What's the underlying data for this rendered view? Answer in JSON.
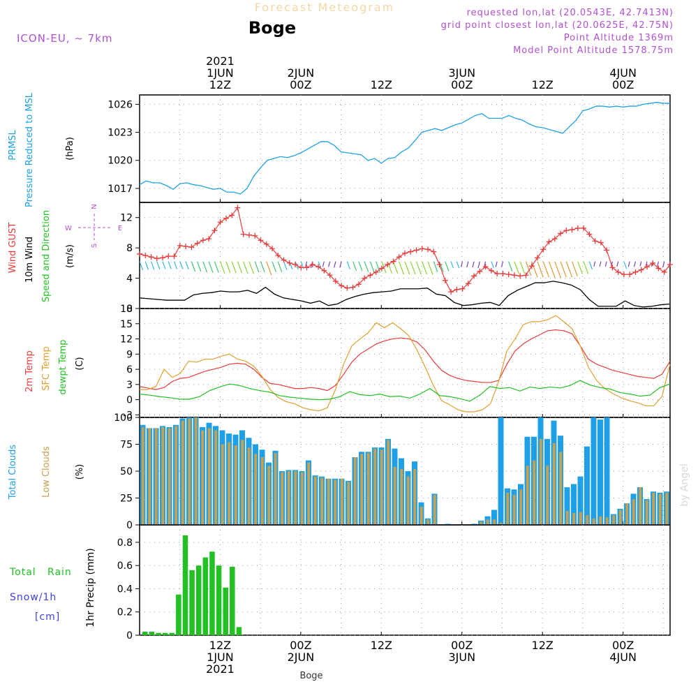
{
  "header": {
    "title": "Forecast Meteogram",
    "location": "Boge",
    "model": "ICON-EU, ~ 7km",
    "requested": "requested lon,lat (20.0543E, 42.7413N)",
    "grid_point": "grid point closest lon,lat (20.0625E, 42.75N)",
    "point_altitude": "Point Altitude 1369m",
    "model_altitude": "Model Point Altitude 1578.75m",
    "footer_location": "Boge",
    "watermark": "by Angel"
  },
  "time_axis": {
    "start_hour": 0,
    "end_hour": 79,
    "top_ticks": [
      {
        "hour": 12,
        "lines": [
          "2021",
          "1JUN",
          "12Z"
        ]
      },
      {
        "hour": 24,
        "lines": [
          "2JUN",
          "00Z"
        ]
      },
      {
        "hour": 36,
        "lines": [
          "12Z"
        ]
      },
      {
        "hour": 48,
        "lines": [
          "3JUN",
          "00Z"
        ]
      },
      {
        "hour": 60,
        "lines": [
          "12Z"
        ]
      },
      {
        "hour": 72,
        "lines": [
          "4JUN",
          "00Z"
        ]
      }
    ],
    "bottom_ticks": [
      {
        "hour": 12,
        "lines": [
          "12Z",
          "1JUN",
          "2021"
        ]
      },
      {
        "hour": 24,
        "lines": [
          "00Z",
          "2JUN"
        ]
      },
      {
        "hour": 36,
        "lines": [
          "12Z"
        ]
      },
      {
        "hour": 48,
        "lines": [
          "00Z",
          "3JUN"
        ]
      },
      {
        "hour": 60,
        "lines": [
          "12Z"
        ]
      },
      {
        "hour": 72,
        "lines": [
          "00Z",
          "4JUN"
        ]
      }
    ]
  },
  "colors": {
    "pressure": "#1ea0e6",
    "gust": "#e83c3c",
    "wind": "#000000",
    "t2m": "#e83c3c",
    "sfc": "#e0a030",
    "dew": "#22c022",
    "total_clouds": "#1ea0e6",
    "low_clouds": "#c8a050",
    "rain": "#22c022",
    "snow": "#4040e0",
    "title": "#f0d8a8",
    "meta": "#b050d0",
    "watermark": "#d8d8d8"
  },
  "panel_labels": {
    "pressure": {
      "lines": [
        "PRMSL",
        "Pressure Reduced to MSL"
      ],
      "unit": "(hPa)"
    },
    "wind": {
      "lines": [
        "Wind GUST",
        "10m Wind",
        "Speed and Direction"
      ],
      "unit": "(m/s)",
      "compass": {
        "n": "N",
        "s": "S",
        "w": "W",
        "e": "E"
      }
    },
    "temp": {
      "lines": [
        "2m Temp",
        "SFC Temp",
        "dewpt Temp"
      ],
      "unit": "(C)"
    },
    "clouds": {
      "lines": [
        "Total Clouds",
        "Low Clouds"
      ],
      "unit": "(%)"
    },
    "precip": {
      "lines": [
        "Total   Rain",
        "Snow/1h",
        "[cm]"
      ],
      "unit": "1hr Precip (mm)"
    }
  },
  "chart_data": [
    {
      "type": "line",
      "panel": "pressure",
      "ylim": [
        1015.5,
        1027
      ],
      "yticks": [
        1017,
        1020,
        1023,
        1026
      ],
      "grid": true,
      "x": [
        0,
        1,
        2,
        3,
        4,
        5,
        6,
        7,
        8,
        9,
        10,
        11,
        12,
        13,
        14,
        15,
        16,
        17,
        18,
        19,
        20,
        21,
        22,
        23,
        24,
        25,
        26,
        27,
        28,
        29,
        30,
        31,
        32,
        33,
        34,
        35,
        36,
        37,
        38,
        39,
        40,
        41,
        42,
        43,
        44,
        45,
        46,
        47,
        48,
        49,
        50,
        51,
        52,
        53,
        54,
        55,
        56,
        57,
        58,
        59,
        60,
        61,
        62,
        63,
        64,
        65,
        66,
        67,
        68,
        69,
        70,
        71,
        72,
        73,
        74,
        75,
        76,
        77,
        78,
        79
      ],
      "series": [
        {
          "name": "PRMSL",
          "values": [
            1017.4,
            1017.8,
            1017.6,
            1017.6,
            1017.3,
            1016.9,
            1017.5,
            1017.6,
            1017.4,
            1017.3,
            1017.1,
            1016.9,
            1017.0,
            1016.6,
            1016.6,
            1016.4,
            1017.0,
            1018.3,
            1019.2,
            1020.0,
            1020.2,
            1020.4,
            1020.3,
            1020.5,
            1020.8,
            1021.2,
            1021.6,
            1022.0,
            1022.0,
            1021.6,
            1020.9,
            1020.8,
            1020.7,
            1020.6,
            1020.0,
            1020.2,
            1019.7,
            1020.2,
            1020.3,
            1020.9,
            1021.3,
            1022.1,
            1023.0,
            1023.2,
            1023.4,
            1023.2,
            1023.5,
            1023.8,
            1024.0,
            1024.4,
            1024.8,
            1025.0,
            1024.5,
            1024.5,
            1024.5,
            1024.8,
            1024.5,
            1024.3,
            1023.9,
            1023.6,
            1023.5,
            1023.3,
            1023.1,
            1022.9,
            1023.6,
            1024.3,
            1025.3,
            1025.5,
            1025.8,
            1025.8,
            1025.7,
            1025.8,
            1025.7,
            1025.8,
            1025.8,
            1026.0,
            1026.1,
            1026.2,
            1026.1,
            1026.1
          ]
        }
      ]
    },
    {
      "type": "line",
      "panel": "wind",
      "ylim": [
        0,
        14
      ],
      "yticks": [
        0,
        4,
        8,
        12
      ],
      "grid": true,
      "series": [
        {
          "name": "Wind GUST",
          "values": [
            7.2,
            7.0,
            6.8,
            6.6,
            6.7,
            6.9,
            6.9,
            8.3,
            8.2,
            8.1,
            8.6,
            9.0,
            9.2,
            10.3,
            11.4,
            11.9,
            12.3,
            13.3,
            9.8,
            9.7,
            9.6,
            9.0,
            8.5,
            7.9,
            7.0,
            6.4,
            6.0,
            5.8,
            5.4,
            5.4,
            5.8,
            5.5,
            5.0,
            4.4,
            3.6,
            3.0,
            2.7,
            2.8,
            3.2,
            4.0,
            4.4,
            4.8,
            5.3,
            5.8,
            6.2,
            6.8,
            7.3,
            7.5,
            7.7,
            7.9,
            7.8,
            7.5,
            5.8,
            3.7,
            2.2,
            2.5,
            2.6,
            3.3,
            4.3,
            4.9,
            5.5,
            5.0,
            4.6,
            4.6,
            4.5,
            4.4,
            4.3,
            4.4,
            5.6,
            6.7,
            7.8,
            8.8,
            9.2,
            9.9,
            10.3,
            10.4,
            10.6,
            10.6,
            9.8,
            8.9,
            8.7,
            7.7,
            5.4,
            4.8,
            4.5,
            4.5,
            4.8,
            5.1,
            5.5,
            6.0,
            5.3,
            4.8,
            5.8
          ]
        },
        {
          "name": "10m Wind",
          "values": [
            1.4,
            1.3,
            1.2,
            1.1,
            1.1,
            1.1,
            1.8,
            2.0,
            2.1,
            2.3,
            2.2,
            2.2,
            2.4,
            2.0,
            2.8,
            1.9,
            1.4,
            1.2,
            1.0,
            0.7,
            1.0,
            0.4,
            0.6,
            1.2,
            1.6,
            1.9,
            2.1,
            2.2,
            2.3,
            2.6,
            2.6,
            2.6,
            2.7,
            1.9,
            1.7,
            0.8,
            0.4,
            0.5,
            0.7,
            0.8,
            0.4,
            1.7,
            2.4,
            2.9,
            3.4,
            3.4,
            3.6,
            3.4,
            3.1,
            2.5,
            1.2,
            0.3,
            0.3,
            0.3,
            1.0,
            0.4,
            0.2,
            0.3,
            0.5,
            0.6
          ]
        }
      ]
    },
    {
      "type": "line",
      "panel": "temp",
      "ylim": [
        -3.5,
        18
      ],
      "yticks": [
        -3,
        0,
        3,
        6,
        9,
        12,
        15,
        18
      ],
      "grid": true,
      "series": [
        {
          "name": "2m Temp",
          "values": [
            2.6,
            2.3,
            2.0,
            2.4,
            3.6,
            4.2,
            4.4,
            5.0,
            5.6,
            6.0,
            6.4,
            7.0,
            7.2,
            7.0,
            6.0,
            4.4,
            3.2,
            3.0,
            2.6,
            2.2,
            2.2,
            2.4,
            2.2,
            1.8,
            2.8,
            5.0,
            7.4,
            9.0,
            10.0,
            11.0,
            11.6,
            12.0,
            12.2,
            12.0,
            11.4,
            9.8,
            7.6,
            5.8,
            4.8,
            4.2,
            3.8,
            3.6,
            3.4,
            3.4,
            3.8,
            7.0,
            9.6,
            11.0,
            12.0,
            12.8,
            13.6,
            13.8,
            13.6,
            13.0,
            10.6,
            8.0,
            7.0,
            6.4,
            5.8,
            5.4,
            5.0,
            4.6,
            4.4,
            4.2,
            5.0,
            7.6
          ]
        },
        {
          "name": "SFC Temp",
          "values": [
            2.0,
            2.0,
            2.6,
            6.0,
            4.4,
            5.2,
            7.6,
            7.4,
            8.0,
            8.0,
            8.6,
            9.0,
            8.0,
            7.6,
            6.6,
            4.6,
            2.0,
            0.4,
            -0.4,
            -0.8,
            -1.6,
            -2.0,
            -2.2,
            -1.6,
            2.0,
            7.0,
            10.6,
            12.0,
            13.2,
            15.2,
            14.2,
            15.2,
            14.0,
            12.6,
            9.8,
            6.4,
            2.8,
            -0.2,
            -1.0,
            -2.0,
            -2.4,
            -2.4,
            -2.0,
            -0.8,
            3.6,
            9.6,
            12.0,
            14.8,
            15.4,
            15.4,
            15.8,
            16.6,
            15.4,
            14.0,
            10.6,
            6.4,
            3.8,
            2.2,
            1.2,
            0.4,
            -0.2,
            -0.6,
            -1.2,
            -1.2,
            0.6,
            7.0
          ]
        },
        {
          "name": "dewpt Temp",
          "values": [
            1.1,
            0.9,
            0.6,
            0.4,
            0.1,
            0.1,
            0.6,
            1.8,
            2.5,
            3.1,
            2.8,
            2.2,
            1.8,
            1.5,
            0.8,
            0.5,
            0.3,
            0.1,
            0.0,
            0.1,
            0.6,
            1.6,
            1.0,
            0.8,
            1.1,
            0.6,
            0.7,
            0.3,
            1.1,
            2.2,
            0.8,
            0.6,
            0.2,
            -0.3,
            0.9,
            2.6,
            2.2,
            2.4,
            1.7,
            2.5,
            2.2,
            2.5,
            2.3,
            2.8,
            3.8,
            2.9,
            2.4,
            2.1,
            1.4,
            1.1,
            0.7,
            0.9,
            2.4,
            3.1
          ]
        }
      ]
    },
    {
      "type": "bar",
      "panel": "clouds",
      "ylim": [
        0,
        100
      ],
      "yticks": [
        0,
        25,
        50,
        75,
        100
      ],
      "grid": true,
      "series": [
        {
          "name": "Total Clouds",
          "values": [
            93,
            90,
            90,
            92,
            91,
            93,
            99,
            100,
            100,
            91,
            95,
            92,
            88,
            85,
            84,
            88,
            81,
            75,
            70,
            58,
            69,
            50,
            51,
            51,
            50,
            60,
            46,
            45,
            43,
            43,
            43,
            41,
            63,
            68,
            68,
            72,
            72,
            80,
            71,
            62,
            50,
            59,
            21,
            6,
            29,
            0,
            1,
            0,
            0,
            0,
            1,
            4,
            8,
            14,
            100,
            34,
            33,
            38,
            82,
            82,
            100,
            80,
            97,
            83,
            35,
            38,
            45,
            73,
            100,
            98,
            100,
            10,
            15,
            20,
            29,
            35,
            24,
            31,
            30,
            31
          ]
        },
        {
          "name": "Low Clouds",
          "values": [
            91,
            90,
            90,
            91,
            90,
            92,
            97,
            99,
            100,
            88,
            90,
            88,
            75,
            77,
            74,
            79,
            72,
            66,
            63,
            55,
            67,
            49,
            50,
            50,
            49,
            58,
            45,
            44,
            43,
            42,
            43,
            40,
            63,
            66,
            67,
            71,
            70,
            79,
            54,
            52,
            45,
            52,
            17,
            5,
            28,
            0,
            0,
            0,
            0,
            0,
            0,
            3,
            5,
            5,
            2,
            30,
            28,
            33,
            55,
            60,
            80,
            55,
            76,
            68,
            13,
            11,
            12,
            9,
            6,
            8,
            7,
            9,
            14,
            20,
            24,
            35,
            23,
            30,
            29,
            30
          ]
        }
      ]
    },
    {
      "type": "bar",
      "panel": "precip",
      "ylim": [
        0,
        0.95
      ],
      "yticks": [
        0,
        0.2,
        0.4,
        0.6,
        0.8
      ],
      "grid": true,
      "series": [
        {
          "name": "Total Rain",
          "values": [
            0.03,
            0.03,
            0.02,
            0.02,
            0.02,
            0.35,
            0.86,
            0.56,
            0.6,
            0.67,
            0.72,
            0.6,
            0.41,
            0.59,
            0.07
          ]
        }
      ]
    }
  ]
}
